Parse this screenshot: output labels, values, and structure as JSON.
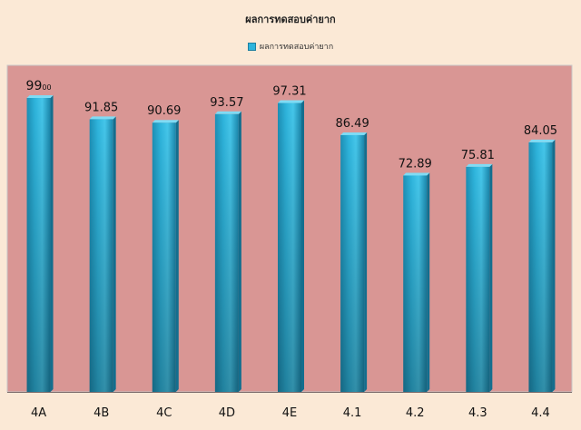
{
  "colors": {
    "page_background": "#fbe9d6",
    "plot_background": "#d99694",
    "bar": "#2eb4dc",
    "highlight_label": "#e0201b"
  },
  "chart_data": {
    "type": "bar",
    "title": "ผลการทดสอบค่ายาก",
    "legend": {
      "position": "top",
      "entries": [
        "ผลการทดสอบค่ายาก"
      ]
    },
    "categories": [
      "4A",
      "4B",
      "4C",
      "4D",
      "4E",
      "4.1",
      "4.2",
      "4.3",
      "4.4"
    ],
    "series": [
      {
        "name": "ผลการทดสอบค่ายาก",
        "values": [
          99.0,
          91.85,
          90.69,
          93.57,
          97.31,
          86.49,
          72.89,
          75.81,
          84.05
        ]
      }
    ],
    "data_labels": [
      "99.00",
      "91.85",
      "90.69",
      "93.57",
      "97.31",
      "86.49",
      "72.89",
      "75.81",
      "84.05"
    ],
    "highlight_index": 0,
    "ylim": [
      0,
      110
    ],
    "grid": false,
    "xlabel": "",
    "ylabel": ""
  }
}
